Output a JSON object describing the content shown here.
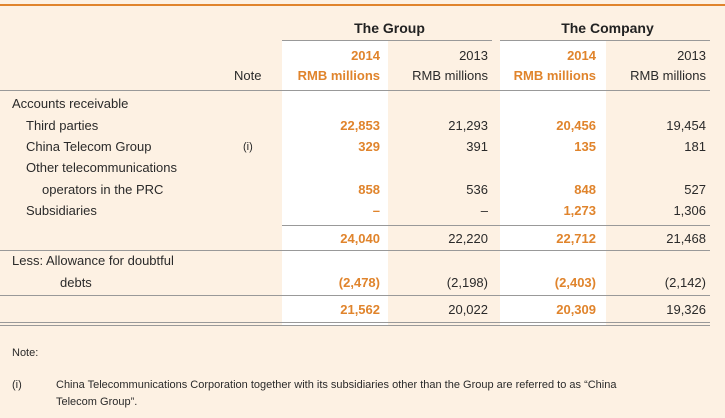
{
  "headers": {
    "group": "The Group",
    "company": "The Company",
    "note": "Note",
    "year_cur": "2014",
    "year_prev": "2013",
    "unit": "RMB millions"
  },
  "rows": {
    "accounts_receivable": "Accounts receivable",
    "third_parties": {
      "label": "Third parties",
      "g14": "22,853",
      "g13": "21,293",
      "c14": "20,456",
      "c13": "19,454"
    },
    "china_telecom": {
      "label": "China Telecom Group",
      "note": "(i)",
      "g14": "329",
      "g13": "391",
      "c14": "135",
      "c13": "181"
    },
    "other_ops_line1": "Other telecommunications",
    "other_ops": {
      "label": "operators in the PRC",
      "g14": "858",
      "g13": "536",
      "c14": "848",
      "c13": "527"
    },
    "subsidiaries": {
      "label": "Subsidiaries",
      "g14": "–",
      "g13": "–",
      "c14": "1,273",
      "c13": "1,306"
    },
    "subtotal": {
      "g14": "24,040",
      "g13": "22,220",
      "c14": "22,712",
      "c13": "21,468"
    },
    "allowance_line1": "Less: Allowance for doubtful",
    "allowance": {
      "label": "debts",
      "g14": "(2,478)",
      "g13": "(2,198)",
      "c14": "(2,403)",
      "c13": "(2,142)"
    },
    "total": {
      "g14": "21,562",
      "g13": "20,022",
      "c14": "20,309",
      "c13": "19,326"
    }
  },
  "note": {
    "heading": "Note:",
    "marker": "(i)",
    "text_line1": "China Telecommunications Corporation together with its subsidiaries other than the Group are referred to as “China",
    "text_line2": "Telecom Group”."
  },
  "colors": {
    "accent": "#e0842c",
    "background": "#fdf1e3"
  }
}
